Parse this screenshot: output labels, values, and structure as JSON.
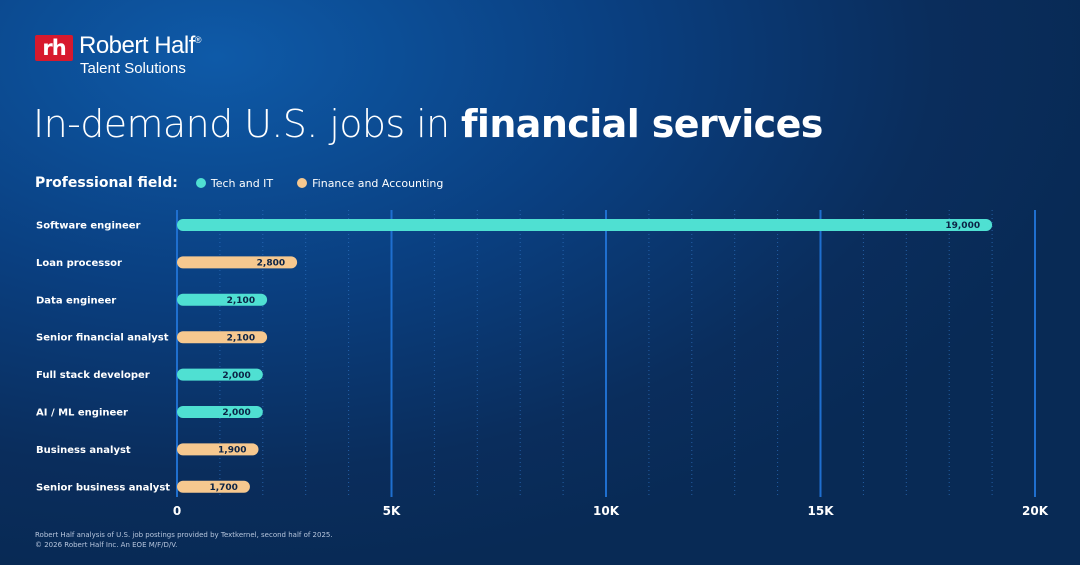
{
  "brand": {
    "mark": "rh",
    "name": "Robert Half",
    "registered": "®",
    "subtitle": "Talent Solutions"
  },
  "title": {
    "light": "In-demand U.S. jobs in",
    "bold": "financial services"
  },
  "legend": {
    "title": "Professional field:",
    "items": [
      {
        "label": "Tech and IT",
        "color": "#4fe0d2"
      },
      {
        "label": "Finance and Accounting",
        "color": "#f6c88f"
      }
    ]
  },
  "footnote": {
    "line1": "Robert Half analysis of U.S. job postings provided by Textkernel, second half of 2025.",
    "line2": "© 2026 Robert Half Inc. An EOE M/F/D/V."
  },
  "chart_data": {
    "type": "bar",
    "orientation": "horizontal",
    "title": "In-demand U.S. jobs in financial services",
    "categories": [
      "Software engineer",
      "Loan processor",
      "Data engineer",
      "Senior financial analyst",
      "Full stack developer",
      "AI / ML engineer",
      "Business analyst",
      "Senior business analyst"
    ],
    "values": [
      19000,
      2800,
      2100,
      2100,
      2000,
      2000,
      1900,
      1700
    ],
    "value_labels": [
      "19,000",
      "2,800",
      "2,100",
      "2,100",
      "2,000",
      "2,000",
      "1,900",
      "1,700"
    ],
    "fields": [
      "Tech and IT",
      "Finance and Accounting",
      "Tech and IT",
      "Finance and Accounting",
      "Tech and IT",
      "Tech and IT",
      "Finance and Accounting",
      "Finance and Accounting"
    ],
    "colors": {
      "Tech and IT": "#4fe0d2",
      "Finance and Accounting": "#f6c88f"
    },
    "xlim": [
      0,
      20000
    ],
    "xticks": [
      0,
      5000,
      10000,
      15000,
      20000
    ],
    "xtick_labels": [
      "0",
      "5K",
      "10K",
      "15K",
      "20K"
    ],
    "minor_gridlines": true,
    "xlabel": "",
    "ylabel": ""
  }
}
